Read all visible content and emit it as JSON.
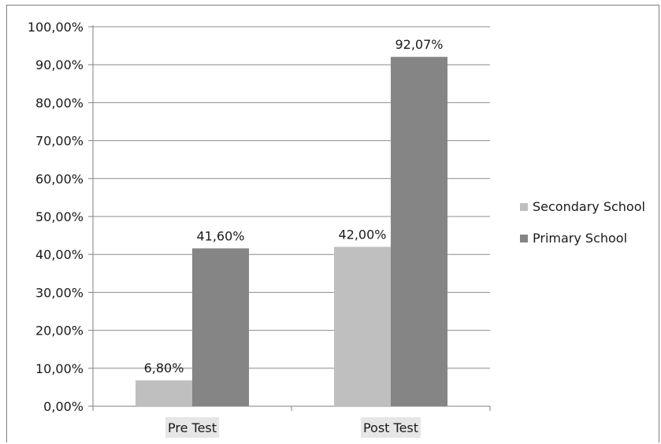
{
  "chart_data": {
    "type": "bar",
    "categories": [
      "Pre Test",
      "Post Test"
    ],
    "series": [
      {
        "name": "Secondary School",
        "values": [
          6.8,
          42.0
        ],
        "labels": [
          "6,80%",
          "42,00%"
        ],
        "color": "#bfbfbf"
      },
      {
        "name": "Primary School",
        "values": [
          41.6,
          92.07
        ],
        "labels": [
          "41,60%",
          "92,07%"
        ],
        "color": "#858585"
      }
    ],
    "ylim": [
      0,
      100
    ],
    "yticks": [
      0,
      10,
      20,
      30,
      40,
      50,
      60,
      70,
      80,
      90,
      100
    ],
    "ytick_labels": [
      "0,00%",
      "10,00%",
      "20,00%",
      "30,00%",
      "40,00%",
      "50,00%",
      "60,00%",
      "70,00%",
      "80,00%",
      "90,00%",
      "100,00%"
    ],
    "grid": true,
    "legend_position": "right",
    "category_label_background": "#e6e6e6",
    "axis_color": "#808080",
    "grid_color": "#8c8c8c"
  }
}
